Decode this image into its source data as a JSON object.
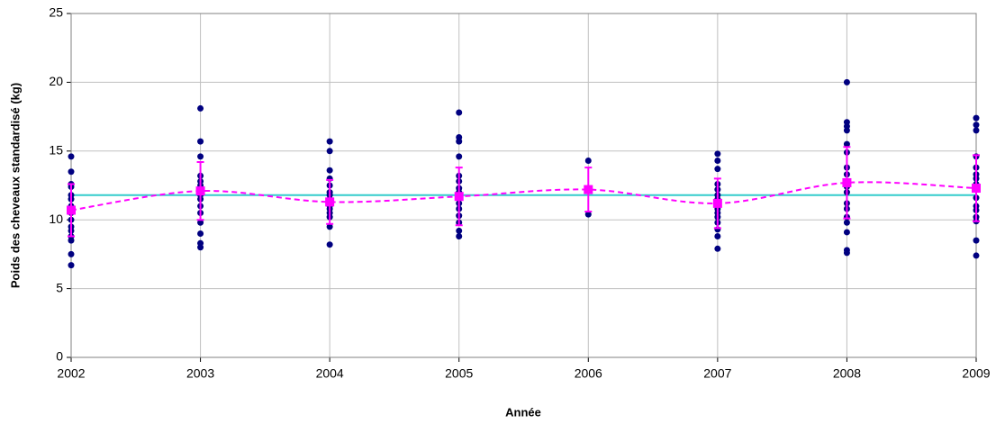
{
  "chart_data": {
    "type": "scatter",
    "x_label": "Année",
    "y_label": "Poids des cheveaux standardisé (kg)",
    "xlim": [
      2002,
      2009
    ],
    "xticks": [
      2002,
      2003,
      2004,
      2005,
      2006,
      2007,
      2008,
      2009
    ],
    "ylim": [
      0,
      25
    ],
    "yticks": [
      0,
      5,
      10,
      15,
      20,
      25
    ],
    "grid": true,
    "point_color": "#000080",
    "groups": [
      {
        "x": 2002,
        "values": [
          14.6,
          13.5,
          12.6,
          12.4,
          11.8,
          11.5,
          11.0,
          10.5,
          10.0,
          9.5,
          9.2,
          8.8,
          8.5,
          7.5,
          6.7
        ]
      },
      {
        "x": 2003,
        "values": [
          18.1,
          15.7,
          14.6,
          13.2,
          12.8,
          12.5,
          12.2,
          11.8,
          11.5,
          11.0,
          10.5,
          9.8,
          9.0,
          8.3,
          8.0
        ]
      },
      {
        "x": 2004,
        "values": [
          15.7,
          15.0,
          13.6,
          13.0,
          12.5,
          12.0,
          11.8,
          11.5,
          11.2,
          11.0,
          10.8,
          10.5,
          10.2,
          9.5,
          8.2
        ]
      },
      {
        "x": 2005,
        "values": [
          17.8,
          16.0,
          15.7,
          14.6,
          13.2,
          12.8,
          12.3,
          12.0,
          11.6,
          11.2,
          10.8,
          10.3,
          9.8,
          9.2,
          8.8
        ]
      },
      {
        "x": 2006,
        "values": [
          14.3,
          10.4
        ]
      },
      {
        "x": 2007,
        "values": [
          14.8,
          14.3,
          13.7,
          12.6,
          12.2,
          11.8,
          11.5,
          11.2,
          10.8,
          10.5,
          10.2,
          9.8,
          9.3,
          8.8,
          7.9
        ]
      },
      {
        "x": 2008,
        "values": [
          20.0,
          17.1,
          16.8,
          16.5,
          15.5,
          14.9,
          13.8,
          13.3,
          12.8,
          12.4,
          12.0,
          11.2,
          10.8,
          10.2,
          9.8,
          9.1,
          7.8,
          7.6
        ]
      },
      {
        "x": 2009,
        "values": [
          17.4,
          16.9,
          16.5,
          14.6,
          13.8,
          13.3,
          13.0,
          12.6,
          12.2,
          11.6,
          11.0,
          10.7,
          10.2,
          9.9,
          8.5,
          7.4
        ]
      }
    ],
    "means": {
      "color": "#ff00ff",
      "x": [
        2002,
        2003,
        2004,
        2005,
        2006,
        2007,
        2008,
        2009
      ],
      "values": [
        10.7,
        12.1,
        11.3,
        11.7,
        12.2,
        11.2,
        12.7,
        12.3
      ],
      "errors": [
        1.9,
        2.1,
        1.6,
        2.1,
        1.6,
        1.8,
        2.6,
        2.4
      ]
    },
    "reference_line": {
      "value": 11.8,
      "color": "#33cccc"
    }
  }
}
